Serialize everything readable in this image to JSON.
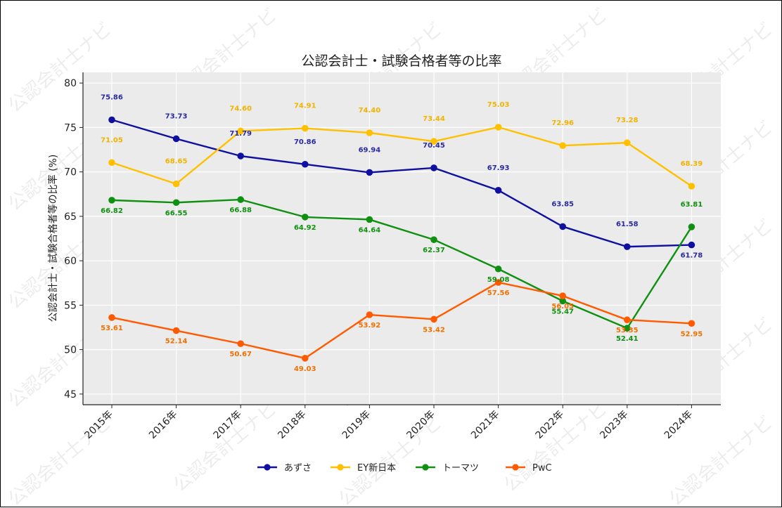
{
  "chart_data": {
    "type": "line",
    "title": "公認会計士・試験合格者等の比率",
    "xlabel": "",
    "ylabel": "公認会計士・試験合格者等の比率 (%)",
    "ylim": [
      43.8,
      81.2
    ],
    "yticks": [
      "45",
      "50",
      "55",
      "60",
      "65",
      "70",
      "75",
      "80"
    ],
    "categories": [
      "2015年",
      "2016年",
      "2017年",
      "2018年",
      "2019年",
      "2020年",
      "2021年",
      "2022年",
      "2023年",
      "2024年"
    ],
    "grid": true,
    "legend_position": "bottom-center",
    "watermark": "公認会計士ナビ",
    "series": [
      {
        "name": "あずさ",
        "color": "#1010a0",
        "label_color": "#2a2aa0",
        "values": [
          75.86,
          73.73,
          71.79,
          70.86,
          69.94,
          70.45,
          67.93,
          63.85,
          61.58,
          61.78
        ],
        "labels": [
          "75.86",
          "73.73",
          "71.79",
          "70.86",
          "69.94",
          "70.45",
          "67.93",
          "63.85",
          "61.58",
          "61.78"
        ],
        "label_pos": [
          "above",
          "above",
          "above",
          "above",
          "above",
          "above",
          "above",
          "above",
          "above",
          "below"
        ]
      },
      {
        "name": "EY新日本",
        "color": "#ffc000",
        "label_color": "#f0b400",
        "values": [
          71.05,
          68.65,
          74.6,
          74.91,
          74.4,
          73.44,
          75.03,
          72.96,
          73.28,
          68.39
        ],
        "labels": [
          "71.05",
          "68.65",
          "74.60",
          "74.91",
          "74.40",
          "73.44",
          "75.03",
          "72.96",
          "73.28",
          "68.39"
        ],
        "label_pos": [
          "above",
          "above",
          "above",
          "above",
          "above",
          "above",
          "above",
          "above",
          "above",
          "above"
        ]
      },
      {
        "name": "トーマツ",
        "color": "#109010",
        "label_color": "#109010",
        "values": [
          66.82,
          66.55,
          66.88,
          64.92,
          64.64,
          62.37,
          59.08,
          55.47,
          52.41,
          63.81
        ],
        "labels": [
          "66.82",
          "66.55",
          "66.88",
          "64.92",
          "64.64",
          "62.37",
          "59.08",
          "55.47",
          "52.41",
          "63.81"
        ],
        "label_pos": [
          "below",
          "below",
          "below",
          "below",
          "below",
          "below",
          "below",
          "below",
          "below",
          "above"
        ]
      },
      {
        "name": "PwC",
        "color": "#ff5a00",
        "label_color": "#f07000",
        "values": [
          53.61,
          52.14,
          50.67,
          49.03,
          53.92,
          53.42,
          57.56,
          56.05,
          53.35,
          52.95
        ],
        "labels": [
          "53.61",
          "52.14",
          "50.67",
          "49.03",
          "53.92",
          "53.42",
          "57.56",
          "56.05",
          "53.35",
          "52.95"
        ],
        "label_pos": [
          "below",
          "below",
          "below",
          "below",
          "below",
          "below",
          "below",
          "below",
          "below",
          "below"
        ]
      }
    ]
  }
}
